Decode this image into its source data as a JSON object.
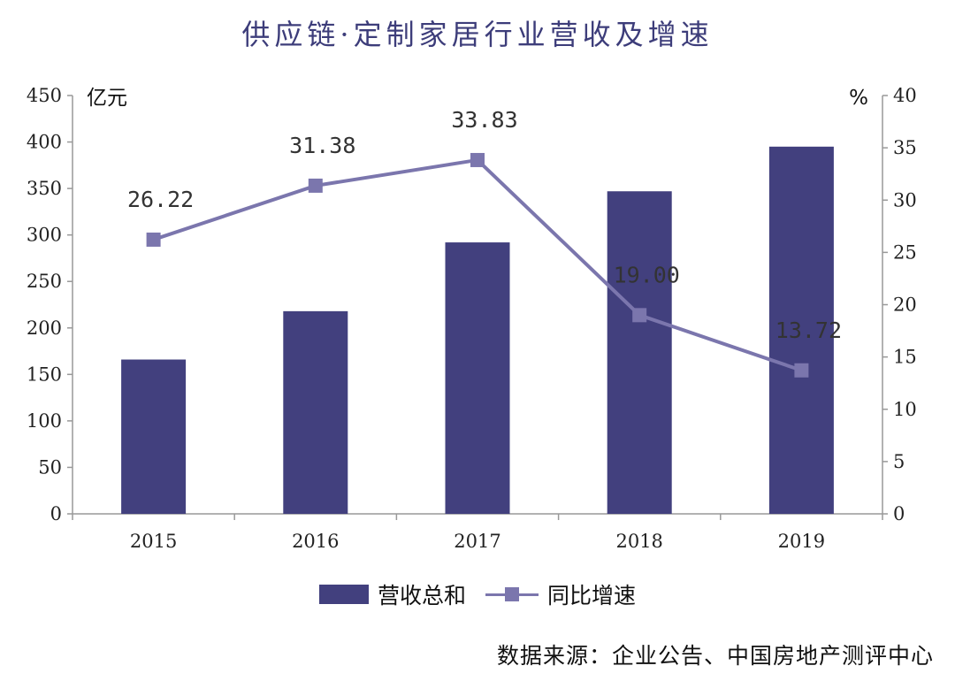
{
  "title": "供应链·定制家居行业营收及增速",
  "source": "数据来源：企业公告、中国房地产测评中心",
  "colors": {
    "bar": "#42407e",
    "line": "#7b76ad",
    "title": "#3d3d7a",
    "axis": "#999999"
  },
  "chart_data": {
    "type": "bar",
    "title": "供应链·定制家居行业营收及增速",
    "categories": [
      "2015",
      "2016",
      "2017",
      "2018",
      "2019"
    ],
    "y_left": {
      "unit": "亿元",
      "range": [
        0,
        450
      ],
      "ticks": [
        0,
        50,
        100,
        150,
        200,
        250,
        300,
        350,
        400,
        450
      ]
    },
    "y_right": {
      "unit": "%",
      "range": [
        0,
        40
      ],
      "ticks": [
        0,
        5,
        10,
        15,
        20,
        25,
        30,
        35,
        40
      ]
    },
    "series": [
      {
        "name": "营收总和",
        "type": "bar",
        "axis": "left",
        "values": [
          166,
          218,
          292,
          347,
          395
        ]
      },
      {
        "name": "同比增速",
        "type": "line",
        "axis": "right",
        "values": [
          26.22,
          31.38,
          33.83,
          19.0,
          13.72
        ],
        "labels": [
          "26.22",
          "31.38",
          "33.83",
          "19.00",
          "13.72"
        ]
      }
    ],
    "legend": "bottom",
    "grid": false
  }
}
